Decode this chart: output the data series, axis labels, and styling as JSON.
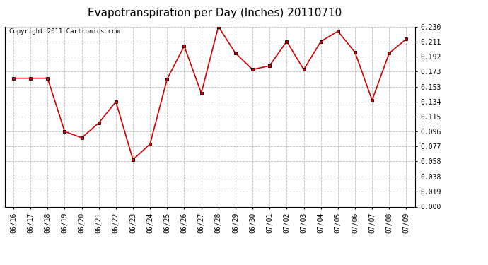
{
  "title": "Evapotranspiration per Day (Inches) 20110710",
  "copyright": "Copyright 2011 Cartronics.com",
  "x_labels": [
    "06/16",
    "06/17",
    "06/18",
    "06/19",
    "06/20",
    "06/21",
    "06/22",
    "06/23",
    "06/24",
    "06/25",
    "06/26",
    "06/27",
    "06/28",
    "06/29",
    "06/30",
    "07/01",
    "07/02",
    "07/03",
    "07/04",
    "07/05",
    "07/06",
    "07/07",
    "07/08",
    "07/09"
  ],
  "y_values": [
    0.164,
    0.164,
    0.164,
    0.096,
    0.088,
    0.107,
    0.134,
    0.06,
    0.08,
    0.163,
    0.205,
    0.145,
    0.23,
    0.196,
    0.175,
    0.18,
    0.211,
    0.175,
    0.211,
    0.224,
    0.197,
    0.136,
    0.196,
    0.214
  ],
  "y_ticks": [
    0.0,
    0.019,
    0.038,
    0.058,
    0.077,
    0.096,
    0.115,
    0.134,
    0.153,
    0.173,
    0.192,
    0.211,
    0.23
  ],
  "ylim": [
    0.0,
    0.23
  ],
  "line_color": "#cc0000",
  "marker": "s",
  "marker_size": 3,
  "bg_color": "#ffffff",
  "grid_color": "#bbbbbb",
  "title_fontsize": 11,
  "tick_fontsize": 7,
  "copyright_fontsize": 6.5
}
